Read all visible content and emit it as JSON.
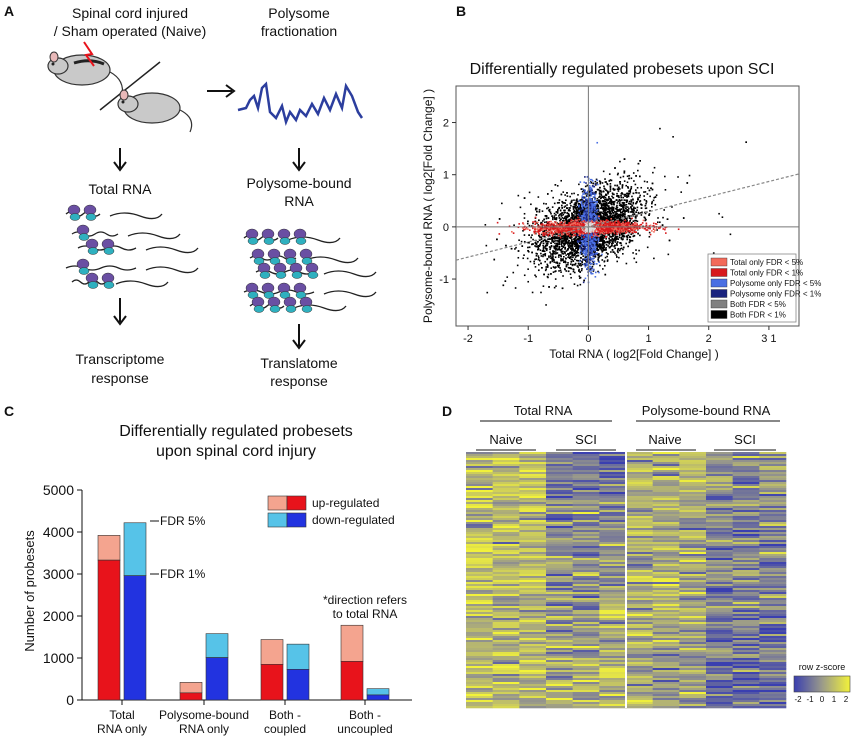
{
  "panel_a": {
    "label": "A",
    "left_title_1": "Spinal cord injured",
    "left_title_2": "/ Sham operated (Naive)",
    "right_title_1": "Polysome",
    "right_title_2": "fractionation",
    "total_rna": "Total RNA",
    "polysome_rna_1": "Polysome-bound",
    "polysome_rna_2": "RNA",
    "transcriptome_1": "Transcriptome",
    "transcriptome_2": "response",
    "translatome_1": "Translatome",
    "translatome_2": "response"
  },
  "panel_b": {
    "label": "B",
    "legend": [
      {
        "label": "Total only FDR < 5%",
        "color": "#f26a5a"
      },
      {
        "label": "Total only FDR < 1%",
        "color": "#d7191c"
      },
      {
        "label": "Polysome only FDR <  5%",
        "color": "#4a6fe3"
      },
      {
        "label": "Polysome only FDR < 1%",
        "color": "#1a237e"
      },
      {
        "label": "Both FDR < 5%",
        "color": "#808080"
      },
      {
        "label": "Both FDR < 1%",
        "color": "#000000"
      }
    ],
    "scatter_summary": "Point cloud: ~10000 probesets; red points along x-axis (total only), blue along y-axis (polysome only), black both; dashed regression line"
  },
  "panel_c": {
    "label": "C",
    "legend_up": "up-regulated",
    "legend_down": "down-regulated",
    "annot_fdr5": "FDR 5%",
    "annot_fdr1": "FDR 1%",
    "annot_direction_1": "*direction refers",
    "annot_direction_2": "to total RNA",
    "colors": {
      "up_light": "#f4a48f",
      "up_dark": "#e8131b",
      "down_light": "#56c3e8",
      "down_dark": "#2233e0"
    }
  },
  "panel_d": {
    "label": "D",
    "group_total": "Total RNA",
    "group_polysome": "Polysome-bound RNA",
    "naive_1": "Naive",
    "sci_1": "SCI",
    "naive_2": "Naive",
    "sci_2": "SCI",
    "colorbar_title": "row z-score",
    "colorbar_ticks": [
      "-2",
      "-1",
      "0",
      "1",
      "2"
    ],
    "colors": {
      "low": "#3a3fb0",
      "mid": "#9a9a8a",
      "high": "#f2f23a"
    }
  },
  "chart_data": [
    {
      "type": "scatter",
      "title": "Differentially regulated probesets upon SCI",
      "xlabel": "Total RNA ( log2[Fold Change] )",
      "ylabel": "Polysome-bound RNA ( log2[Fold Change] )",
      "xlim": [
        -2.2,
        3.5
      ],
      "ylim": [
        -1.9,
        2.7
      ],
      "xticks": [
        "-2",
        "-1",
        "0",
        "1",
        "2",
        "3 1"
      ],
      "yticks": [
        "2",
        "1",
        "0",
        "-1"
      ],
      "regression": {
        "slope": 0.29,
        "intercept": 0
      }
    },
    {
      "type": "bar",
      "title": "Differentially regulated probesets",
      "title2": "upon spinal cord injury",
      "ylabel": "Number of probesets",
      "ylim": [
        0,
        5000
      ],
      "yticks": [
        "0",
        "1000",
        "2000",
        "3000",
        "4000",
        "5000"
      ],
      "categories": [
        {
          "line1": "Total",
          "line2": "RNA only"
        },
        {
          "line1": "Polysome-bound",
          "line2": "RNA only"
        },
        {
          "line1": "Both -",
          "line2": "coupled"
        },
        {
          "line1": "Both -",
          "line2": "uncoupled"
        }
      ],
      "series": [
        {
          "name": "up-regulated",
          "fdr1": [
            3330,
            170,
            850,
            920
          ],
          "fdr5": [
            3920,
            420,
            1440,
            1780
          ]
        },
        {
          "name": "down-regulated",
          "fdr1": [
            2960,
            1010,
            730,
            120
          ],
          "fdr5": [
            4220,
            1580,
            1330,
            270
          ]
        }
      ]
    },
    {
      "type": "heatmap",
      "columns": [
        "Naive",
        "Naive",
        "Naive",
        "SCI",
        "SCI",
        "SCI",
        "Naive",
        "Naive",
        "Naive",
        "SCI",
        "SCI",
        "SCI"
      ],
      "pattern": "Total RNA: Naive mostly high (yellow), SCI mostly low (blue) at top then high at bottom; Polysome-bound RNA: Naive mixed, SCI mixed"
    }
  ]
}
